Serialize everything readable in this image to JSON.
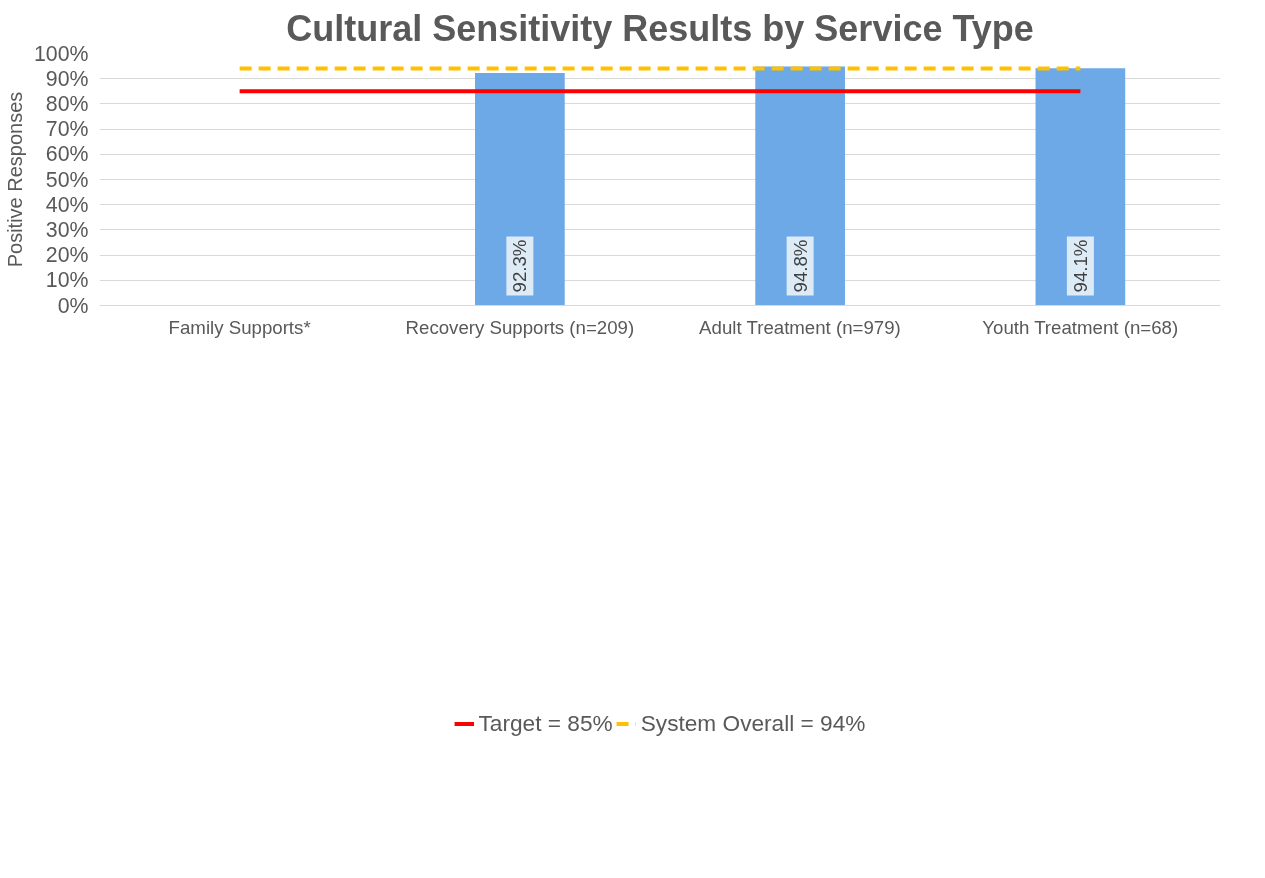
{
  "chart_data": {
    "type": "bar",
    "title": "Cultural Sensitivity Results by Service Type",
    "ylabel": "Positive Responses",
    "categories": [
      "Family Supports*",
      "Recovery Supports (n=209)",
      "Adult Treatment (n=979)",
      "Youth Treatment (n=68)"
    ],
    "series": [
      {
        "color": "#6ca9e6",
        "values": [
          null,
          92.3,
          94.8,
          94.1
        ],
        "value_labels": [
          null,
          "92.3%",
          "94.8%",
          "94.1%"
        ]
      },
      {
        "type": "line",
        "name": "Target = 85%",
        "color": "#ff0000",
        "line_style": "solid",
        "values": [
          85,
          85,
          85,
          85
        ]
      },
      {
        "type": "line",
        "name": "System Overall = 94%",
        "color": "#ffc000",
        "line_style": "dashed",
        "values": [
          94,
          94,
          94,
          94
        ]
      }
    ],
    "ylim": [
      0,
      100
    ],
    "yticks": [
      {
        "value": 0,
        "label": "0%"
      },
      {
        "value": 10,
        "label": "10%"
      },
      {
        "value": 20,
        "label": "20%"
      },
      {
        "value": 30,
        "label": "30%"
      },
      {
        "value": 40,
        "label": "40%"
      },
      {
        "value": 50,
        "label": "50%"
      },
      {
        "value": 60,
        "label": "60%"
      },
      {
        "value": 70,
        "label": "70%"
      },
      {
        "value": 80,
        "label": "80%"
      },
      {
        "value": 90,
        "label": "90%"
      },
      {
        "value": 100,
        "label": "100%"
      }
    ],
    "grid": "y",
    "legend": "bottom"
  }
}
